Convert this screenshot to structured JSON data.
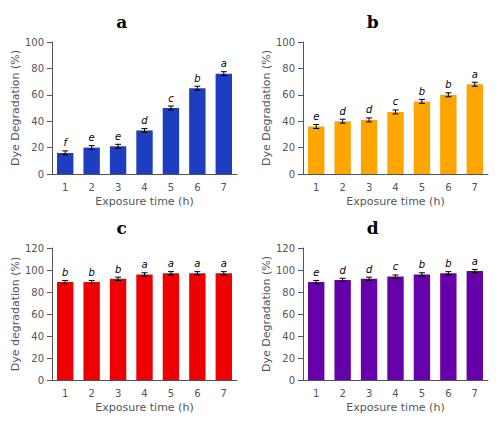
{
  "chart_data": [
    {
      "type": "bar",
      "title": "a",
      "xlabel": "Exposure time (h)",
      "ylabel": "Dye Degradation (%)",
      "categories": [
        "1",
        "2",
        "3",
        "4",
        "5",
        "6",
        "7"
      ],
      "values": [
        16,
        20,
        21,
        33,
        50,
        65,
        76
      ],
      "errors": [
        1.5,
        1.5,
        1.5,
        1.5,
        1.5,
        1.5,
        1.5
      ],
      "annotations": [
        "f",
        "e",
        "e",
        "d",
        "c",
        "b",
        "a"
      ],
      "color": "#1E3EC2",
      "ylim": [
        0,
        100
      ],
      "yticks": [
        0,
        20,
        40,
        60,
        80,
        100
      ],
      "grid": false
    },
    {
      "type": "bar",
      "title": "b",
      "xlabel": "Exposure time (h)",
      "ylabel": "Dye Degradation (%)",
      "categories": [
        "1",
        "2",
        "3",
        "4",
        "5",
        "6",
        "7"
      ],
      "values": [
        36,
        40,
        41,
        47,
        55,
        60,
        68
      ],
      "errors": [
        1.5,
        1.5,
        1.5,
        1.5,
        1.5,
        1.5,
        1.5
      ],
      "annotations": [
        "e",
        "d",
        "d",
        "c",
        "b",
        "b",
        "a"
      ],
      "color": "#FFA500",
      "ylim": [
        0,
        100
      ],
      "yticks": [
        0,
        20,
        40,
        60,
        80,
        100
      ],
      "grid": false
    },
    {
      "type": "bar",
      "title": "c",
      "xlabel": "Exposure time (h)",
      "ylabel": "Dye degradation (%)",
      "categories": [
        "1",
        "2",
        "3",
        "4",
        "5",
        "6",
        "7"
      ],
      "values": [
        89,
        89,
        92,
        96,
        97,
        97,
        97
      ],
      "errors": [
        1.5,
        1.5,
        1.5,
        1.5,
        1.5,
        1.5,
        1.5
      ],
      "annotations": [
        "b",
        "b",
        "b",
        "a",
        "a",
        "a",
        "a"
      ],
      "color": "#EE0000",
      "ylim": [
        0,
        120
      ],
      "yticks": [
        0,
        20,
        40,
        60,
        80,
        100,
        120
      ],
      "grid": false
    },
    {
      "type": "bar",
      "title": "d",
      "xlabel": "Exposure time (h)",
      "ylabel": "Dye Degradation (%)",
      "categories": [
        "1",
        "2",
        "3",
        "4",
        "5",
        "6",
        "7"
      ],
      "values": [
        89,
        91,
        92,
        94,
        96,
        97,
        99
      ],
      "errors": [
        1.5,
        1.5,
        1.5,
        1.5,
        1.5,
        1.5,
        1.5
      ],
      "annotations": [
        "e",
        "d",
        "d",
        "c",
        "b",
        "b",
        "a"
      ],
      "color": "#6600AA",
      "ylim": [
        0,
        120
      ],
      "yticks": [
        0,
        20,
        40,
        60,
        80,
        100,
        120
      ],
      "grid": false
    }
  ]
}
